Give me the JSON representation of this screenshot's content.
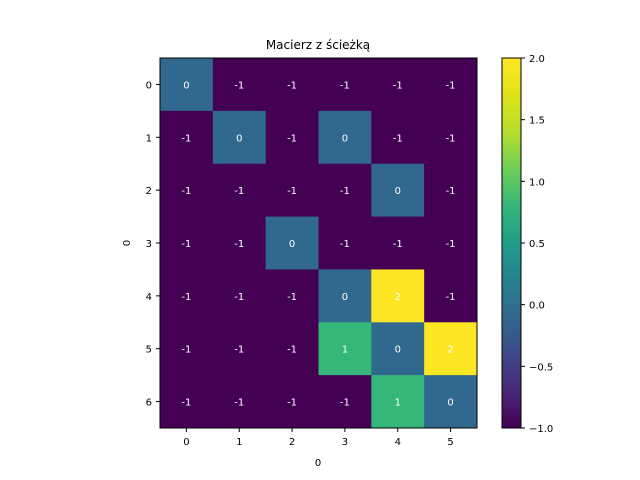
{
  "chart_data": {
    "type": "heatmap",
    "title": "Macierz z ścieżką",
    "xlabel": "0",
    "ylabel": "0",
    "x_ticks": [
      "0",
      "1",
      "2",
      "3",
      "4",
      "5"
    ],
    "y_ticks": [
      "0",
      "1",
      "2",
      "3",
      "4",
      "5",
      "6"
    ],
    "values": [
      [
        0,
        -1,
        -1,
        -1,
        -1,
        -1
      ],
      [
        -1,
        0,
        -1,
        0,
        -1,
        -1
      ],
      [
        -1,
        -1,
        -1,
        -1,
        0,
        -1
      ],
      [
        -1,
        -1,
        0,
        -1,
        -1,
        -1
      ],
      [
        -1,
        -1,
        -1,
        0,
        2,
        -1
      ],
      [
        -1,
        -1,
        -1,
        1,
        0,
        2
      ],
      [
        -1,
        -1,
        -1,
        -1,
        1,
        0
      ]
    ],
    "colormap": "viridis",
    "vmin": -1.0,
    "vmax": 2.0,
    "colorbar_ticks": [
      "−1.0",
      "−0.5",
      "0.0",
      "0.5",
      "1.0",
      "1.5",
      "2.0"
    ],
    "colors": {
      "-1": "#440154",
      "0": "#31688e",
      "1": "#35b779",
      "2": "#fde725"
    }
  }
}
